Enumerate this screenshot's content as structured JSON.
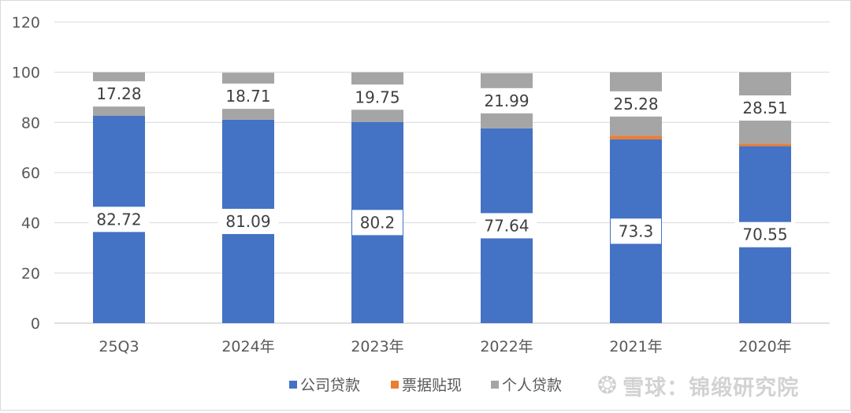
{
  "chart_data": {
    "type": "bar",
    "stacked": true,
    "categories": [
      "25Q3",
      "2024年",
      "2023年",
      "2022年",
      "2021年",
      "2020年"
    ],
    "series": [
      {
        "name": "公司贷款",
        "color": "#4472C4",
        "values": [
          82.72,
          81.09,
          80.2,
          77.64,
          73.3,
          70.55
        ]
      },
      {
        "name": "票据贴现",
        "color": "#ED7D31",
        "values": [
          0,
          0,
          0,
          0,
          1.42,
          0.94
        ]
      },
      {
        "name": "个人贷款",
        "color": "#A5A5A5",
        "values": [
          17.28,
          18.71,
          19.75,
          21.99,
          25.28,
          28.51
        ]
      }
    ],
    "ylim": [
      0,
      120
    ],
    "yticks": [
      "0",
      "20",
      "40",
      "60",
      "80",
      "100",
      "120"
    ],
    "grid": true,
    "legend_position": "bottom",
    "data_labels": {
      "公司贷款": [
        "82.72",
        "81.09",
        "80.2",
        "77.64",
        "73.3",
        "70.55"
      ],
      "个人贷款": [
        "17.28",
        "18.71",
        "19.75",
        "21.99",
        "25.28",
        "28.51"
      ]
    }
  },
  "watermark": {
    "text": "雪球：锦缎研究院"
  }
}
